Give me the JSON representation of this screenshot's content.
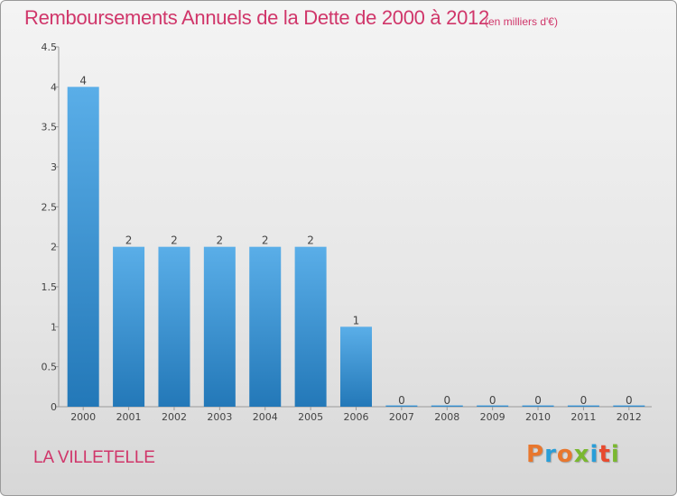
{
  "header": {
    "title": "Remboursements Annuels de la Dette de 2000 à 2012",
    "unit": "(en milliers d'€)"
  },
  "footer": {
    "commune": "LA VILLETELLE",
    "logo": "Proxiti"
  },
  "colors": {
    "title": "#d0366a",
    "bar_top": "#5aaee8",
    "bar_bottom": "#2378b8",
    "logo_letters": [
      "#e8772e",
      "#2a9ed8",
      "#e8772e",
      "#7ab830",
      "#2a9ed8",
      "#e84a2e",
      "#7ab830"
    ]
  },
  "chart_data": {
    "type": "bar",
    "categories": [
      "2000",
      "2001",
      "2002",
      "2003",
      "2004",
      "2005",
      "2006",
      "2007",
      "2008",
      "2009",
      "2010",
      "2011",
      "2012"
    ],
    "values": [
      4,
      2,
      2,
      2,
      2,
      2,
      1,
      0,
      0,
      0,
      0,
      0,
      0
    ],
    "data_labels": [
      "4",
      "2",
      "2",
      "2",
      "2",
      "2",
      "1",
      "0",
      "0",
      "0",
      "0",
      "0",
      "0"
    ],
    "ylim": [
      0,
      4.5
    ],
    "yticks": [
      0,
      0.5,
      1,
      1.5,
      2,
      2.5,
      3,
      3.5,
      4,
      4.5
    ],
    "ytick_labels": [
      "0",
      "0.5",
      "1",
      "1.5",
      "2",
      "2.5",
      "3",
      "3.5",
      "4",
      "4.5"
    ],
    "grid": false,
    "legend": "none"
  }
}
